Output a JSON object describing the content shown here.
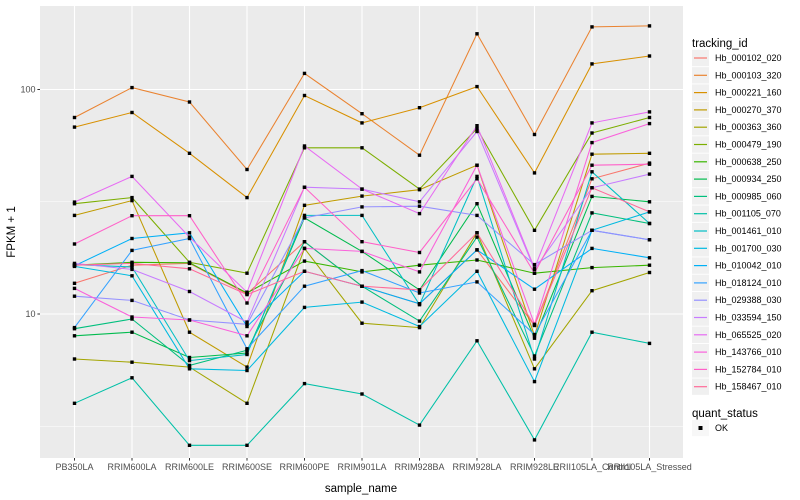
{
  "panel": {
    "background": "#EBEBEB",
    "gridline_color": "#FFFFFF",
    "marker_color": "#000000"
  },
  "legend": {
    "tracking_title": "tracking_id",
    "quant_title": "quant_status",
    "quant_entries": [
      {
        "label": "OK",
        "marker": "filled-square",
        "color": "#000000"
      }
    ]
  },
  "chart_data": {
    "type": "line",
    "title": "",
    "xlabel": "sample_name",
    "ylabel": "FPKM + 1",
    "y_scale": "log10",
    "grid": true,
    "legend_position": "right",
    "ylim": [
      2.3,
      235
    ],
    "y_ticks": [
      {
        "value": 100,
        "label": "100"
      },
      {
        "value": 10,
        "label": "10"
      }
    ],
    "y_minor": [
      31.62,
      3.162
    ],
    "categories": [
      "PB350LA",
      "RRIM600LA",
      "RRIM600LE",
      "RRIM600SE",
      "RRIM600PE",
      "RRIM901LA",
      "RRIM928BA",
      "RRIM928LA",
      "RRIM928LE",
      "RRII105LA_Control",
      "RRII105LA_Stressed"
    ],
    "point_status_label": "OK",
    "series": [
      {
        "name": "Hb_000102_020",
        "color": "#F8766D",
        "values": [
          13.7,
          16.5,
          16.8,
          12.3,
          21,
          13.3,
          11.1,
          19.3,
          8.9,
          40,
          47
        ]
      },
      {
        "name": "Hb_000103_320",
        "color": "#EA8331",
        "values": [
          75,
          102,
          88,
          44,
          118,
          78,
          51,
          177,
          63,
          190,
          192
        ]
      },
      {
        "name": "Hb_000221_160",
        "color": "#D89000",
        "values": [
          68,
          79,
          52,
          33,
          94,
          71,
          83,
          103,
          42.5,
          130,
          141
        ]
      },
      {
        "name": "Hb_000270_370",
        "color": "#C09B00",
        "values": [
          27.5,
          32,
          8.3,
          5.8,
          30.5,
          33.5,
          35.8,
          46,
          8,
          51.5,
          52
        ]
      },
      {
        "name": "Hb_000363_360",
        "color": "#A3A500",
        "values": [
          6.3,
          6.1,
          5.8,
          4,
          19.6,
          9.1,
          8.7,
          23,
          5.7,
          12.7,
          15.3
        ]
      },
      {
        "name": "Hb_000479_190",
        "color": "#7CAE00",
        "values": [
          31,
          33,
          17,
          15.2,
          55,
          55,
          36,
          67,
          23.6,
          64,
          75
        ]
      },
      {
        "name": "Hb_000638_250",
        "color": "#39B600",
        "values": [
          16.5,
          17,
          16.9,
          12.4,
          17.2,
          15.4,
          16.5,
          17.4,
          15.2,
          16.1,
          16.5
        ]
      },
      {
        "name": "Hb_000934_250",
        "color": "#00BB4E",
        "values": [
          8,
          8.3,
          6.4,
          6.7,
          26.8,
          19,
          12.8,
          31,
          7.8,
          33.4,
          31.6
        ]
      },
      {
        "name": "Hb_000985_060",
        "color": "#00BF7D",
        "values": [
          8.6,
          9.5,
          5.9,
          6.9,
          21,
          13.3,
          9.3,
          22,
          6.5,
          28.2,
          25.3
        ]
      },
      {
        "name": "Hb_001105_070",
        "color": "#00C0A7",
        "values": [
          4,
          5.2,
          2.6,
          2.6,
          4.9,
          4.4,
          3.2,
          7.6,
          2.75,
          8.3,
          7.4
        ]
      },
      {
        "name": "Hb_001461_010",
        "color": "#00BFC4",
        "values": [
          16.6,
          16.2,
          6.2,
          6.6,
          27.5,
          27.5,
          11,
          41,
          6.3,
          43,
          25.3
        ]
      },
      {
        "name": "Hb_001700_030",
        "color": "#00BAE0",
        "values": [
          16.3,
          14.8,
          5.7,
          5.6,
          10.7,
          11.3,
          8.8,
          15.5,
          5,
          23.6,
          28.5
        ]
      },
      {
        "name": "Hb_010042_010",
        "color": "#00B0F6",
        "values": [
          16.4,
          21.7,
          23,
          8.8,
          15.5,
          13.3,
          11.1,
          19.3,
          12.9,
          19.6,
          17.8
        ]
      },
      {
        "name": "Hb_018124_010",
        "color": "#35A2FF",
        "values": [
          8.7,
          19.2,
          21.7,
          7,
          13.3,
          15.6,
          12.4,
          13.9,
          8.1,
          23.6,
          21.4
        ]
      },
      {
        "name": "Hb_029388_030",
        "color": "#9590FF",
        "values": [
          12,
          11.5,
          9.4,
          9,
          26.8,
          30,
          30.2,
          27.5,
          16.6,
          23.6,
          21.4
        ]
      },
      {
        "name": "Hb_033594_150",
        "color": "#C77CFF",
        "values": [
          16.8,
          15.8,
          12.6,
          9.2,
          36.7,
          36,
          31.6,
          65,
          15.8,
          36.5,
          42
        ]
      },
      {
        "name": "Hb_065525_020",
        "color": "#E76BF3",
        "values": [
          31.5,
          41,
          22,
          12.5,
          56,
          36,
          28,
          69,
          16,
          71,
          79.5
        ]
      },
      {
        "name": "Hb_143766_010",
        "color": "#FA62DB",
        "values": [
          13,
          9.7,
          9.4,
          8,
          19.6,
          19,
          15.4,
          46,
          9,
          58,
          70.5
        ]
      },
      {
        "name": "Hb_152784_010",
        "color": "#FF61C9",
        "values": [
          20.5,
          27.4,
          27.4,
          11.2,
          36.7,
          21,
          18.8,
          40,
          15.2,
          46,
          46.5
        ]
      },
      {
        "name": "Hb_158467_010",
        "color": "#FF6A98",
        "values": [
          16.5,
          16.8,
          15.9,
          12.2,
          15.5,
          13.3,
          12.8,
          23,
          8.9,
          36.5,
          28.5
        ]
      }
    ]
  }
}
